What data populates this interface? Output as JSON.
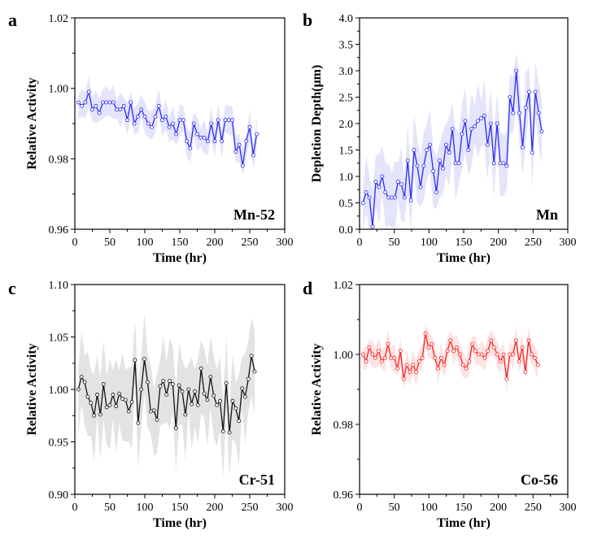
{
  "chart_data": [
    {
      "type": "line",
      "panel_letter": "a",
      "tag": "Mn-52",
      "xlabel": "Time (hr)",
      "ylabel": "Relative Activity",
      "xlim": [
        0,
        300
      ],
      "ylim": [
        0.96,
        1.02
      ],
      "xticks": [
        0,
        50,
        100,
        150,
        200,
        250,
        300
      ],
      "yticks": [
        0.96,
        0.98,
        1.0,
        1.02
      ],
      "ytick_labels": [
        "0.96",
        "0.98",
        "1.00",
        "1.02"
      ],
      "color": "#2b2bf5",
      "band_color": "#e4e4fb",
      "x_start": 5,
      "x_step": 5,
      "band_halfwidth": 0.0035,
      "values": [
        0.996,
        0.995,
        0.996,
        0.999,
        0.994,
        0.995,
        0.993,
        0.996,
        0.996,
        0.996,
        0.996,
        0.994,
        0.994,
        0.995,
        0.991,
        0.996,
        0.99,
        0.992,
        0.994,
        0.992,
        0.99,
        0.989,
        0.992,
        0.995,
        0.991,
        0.992,
        0.989,
        0.99,
        0.987,
        0.991,
        0.991,
        0.985,
        0.983,
        0.99,
        0.987,
        0.986,
        0.986,
        0.985,
        0.99,
        0.985,
        0.991,
        0.985,
        0.991,
        0.991,
        0.991,
        0.982,
        0.984,
        0.978,
        0.985,
        0.989,
        0.981,
        0.987
      ]
    },
    {
      "type": "line",
      "panel_letter": "b",
      "tag": "Mn",
      "xlabel": "Time (hr)",
      "ylabel": "Depletion Depth(μm)",
      "xlim": [
        0,
        300
      ],
      "ylim": [
        0,
        4.0
      ],
      "xticks": [
        0,
        50,
        100,
        150,
        200,
        250,
        300
      ],
      "yticks": [
        0,
        0.5,
        1,
        1.5,
        2,
        2.5,
        3,
        3.5,
        4
      ],
      "ytick_labels": [
        "0.0",
        "0.5",
        "1.0",
        "1.5",
        "2.0",
        "2.5",
        "3.0",
        "3.5",
        "4.0"
      ],
      "color": "#2b2bf5",
      "band_color": "#e4e4fb",
      "x_start": 5,
      "x_step": 4.6,
      "band_halfwidth": 0.5,
      "values": [
        0.5,
        0.7,
        0.6,
        0.05,
        0.9,
        0.8,
        1.0,
        0.7,
        0.6,
        0.6,
        0.6,
        0.9,
        0.85,
        0.6,
        1.3,
        0.55,
        1.5,
        1.2,
        0.8,
        1.2,
        1.5,
        1.6,
        1.1,
        0.7,
        1.3,
        1.15,
        1.6,
        1.45,
        1.9,
        1.25,
        1.25,
        1.8,
        2.05,
        1.5,
        1.9,
        1.95,
        2.05,
        2.1,
        2.15,
        1.6,
        2.0,
        1.25,
        2.0,
        1.25,
        1.25,
        1.2,
        2.5,
        2.2,
        3.0,
        2.2,
        1.55,
        2.3,
        2.6,
        1.45,
        2.6,
        2.2,
        1.85
      ]
    },
    {
      "type": "line",
      "panel_letter": "c",
      "tag": "Cr-51",
      "xlabel": "Time (hr)",
      "ylabel": "Relative Activity",
      "xlim": [
        0,
        300
      ],
      "ylim": [
        0.9,
        1.1
      ],
      "xticks": [
        0,
        50,
        100,
        150,
        200,
        250,
        300
      ],
      "yticks": [
        0.9,
        0.95,
        1.0,
        1.05,
        1.1
      ],
      "ytick_labels": [
        "0.90",
        "0.95",
        "1.00",
        "1.05",
        "1.10"
      ],
      "color": "#111111",
      "band_color": "#e3e3e3",
      "x_start": 5,
      "x_step": 4.5,
      "band_halfwidth": 0.032,
      "values": [
        1.0,
        1.012,
        1.007,
        0.993,
        0.987,
        0.975,
        0.995,
        0.976,
        1.005,
        0.983,
        0.985,
        0.995,
        0.984,
        0.996,
        0.991,
        0.99,
        0.979,
        0.988,
        1.028,
        0.968,
        1.0,
        1.029,
        1.007,
        0.979,
        0.98,
        0.971,
        1.003,
        1.008,
        0.995,
        1.008,
        1.005,
        0.963,
        1.004,
        0.998,
        0.976,
        1.0,
        0.986,
        0.998,
        0.985,
        1.02,
        0.996,
        0.99,
        1.012,
        0.994,
        0.985,
        0.989,
        0.96,
        1.006,
        0.959,
        0.989,
        0.982,
        0.97,
        1.001,
        0.993,
        1.01,
        1.032,
        1.017
      ]
    },
    {
      "type": "line",
      "panel_letter": "d",
      "tag": "Co-56",
      "xlabel": "Time (hr)",
      "ylabel": "Relative Activity",
      "xlim": [
        0,
        300
      ],
      "ylim": [
        0.96,
        1.02
      ],
      "xticks": [
        0,
        50,
        100,
        150,
        200,
        250,
        300
      ],
      "yticks": [
        0.96,
        0.98,
        1.0,
        1.02
      ],
      "ytick_labels": [
        "0.96",
        "0.98",
        "1.00",
        "1.02"
      ],
      "color": "#ff1e1e",
      "band_color": "#fde3e3",
      "x_start": 5,
      "x_step": 4.5,
      "band_halfwidth": 0.003,
      "values": [
        1.0,
        0.998,
        1.002,
        1.0,
        0.999,
        1.001,
        0.998,
        0.999,
        1.003,
        0.999,
        0.999,
        0.996,
        1.001,
        0.993,
        0.997,
        0.995,
        0.997,
        0.995,
        0.998,
        0.999,
        1.006,
        1.002,
        1.003,
        0.999,
        0.996,
        0.999,
        0.997,
        1.001,
        1.004,
        1.001,
        1.002,
        1.0,
        0.997,
        0.996,
        0.998,
        1.003,
        1.001,
        1.0,
        1.0,
        0.999,
        1.001,
        1.004,
        1.002,
        1.0,
        0.998,
        1.0,
        0.993,
        1.0,
        1.0,
        1.004,
        0.998,
        1.002,
        0.995,
        1.004,
        1.0,
        0.999,
        0.997
      ]
    }
  ]
}
